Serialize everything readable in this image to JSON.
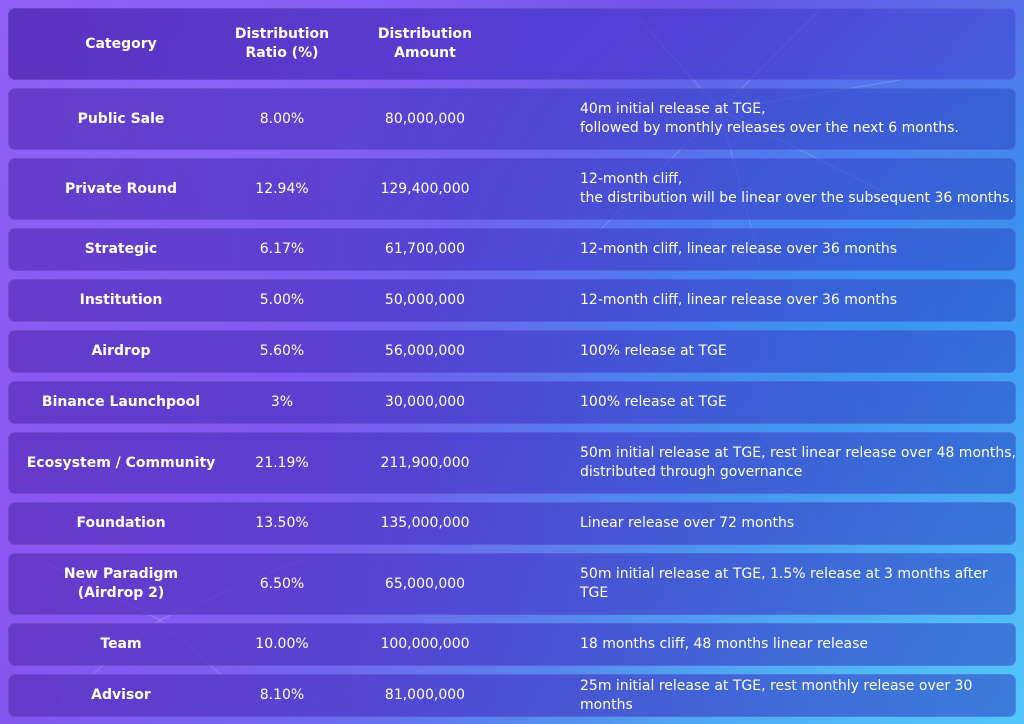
{
  "header": {
    "category": "Category",
    "ratio_line1": "Distribution",
    "ratio_line2": "Ratio (%)",
    "amount_line1": "Distribution",
    "amount_line2": "Amount"
  },
  "rows": [
    {
      "category": "Public Sale",
      "ratio": "8.00%",
      "amount": "80,000,000",
      "vesting_line1": "40m initial release at TGE,",
      "vesting_line2": "followed by monthly releases over the next 6 months."
    },
    {
      "category": "Private Round",
      "ratio": "12.94%",
      "amount": "129,400,000",
      "vesting_line1": "12-month cliff,",
      "vesting_line2": "the distribution will be linear over the subsequent 36 months."
    },
    {
      "category": "Strategic",
      "ratio": "6.17%",
      "amount": "61,700,000",
      "vesting_line1": "12-month cliff, linear release over 36 months"
    },
    {
      "category": "Institution",
      "ratio": "5.00%",
      "amount": "50,000,000",
      "vesting_line1": "12-month cliff, linear release over 36 months"
    },
    {
      "category": "Airdrop",
      "ratio": "5.60%",
      "amount": "56,000,000",
      "vesting_line1": "100% release at TGE"
    },
    {
      "category": "Binance Launchpool",
      "ratio": "3%",
      "amount": "30,000,000",
      "vesting_line1": "100% release at TGE"
    },
    {
      "category": "Ecosystem / Community",
      "ratio": "21.19%",
      "amount": "211,900,000",
      "vesting_line1": "50m initial release at TGE, rest linear release over 48 months,",
      "vesting_line2": "distributed through governance"
    },
    {
      "category": "Foundation",
      "ratio": "13.50%",
      "amount": "135,000,000",
      "vesting_line1": "Linear release over 72 months"
    },
    {
      "category_line1": "New Paradigm",
      "category_line2": "(Airdrop 2)",
      "ratio": "6.50%",
      "amount": "65,000,000",
      "vesting_line1": "50m initial release at TGE, 1.5% release at 3 months after TGE"
    },
    {
      "category": "Team",
      "ratio": "10.00%",
      "amount": "100,000,000",
      "vesting_line1": "18 months cliff, 48 months linear release"
    },
    {
      "category": "Advisor",
      "ratio": "8.10%",
      "amount": "81,000,000",
      "vesting_line1": "25m initial release at TGE, rest monthly release over 30 months"
    }
  ]
}
